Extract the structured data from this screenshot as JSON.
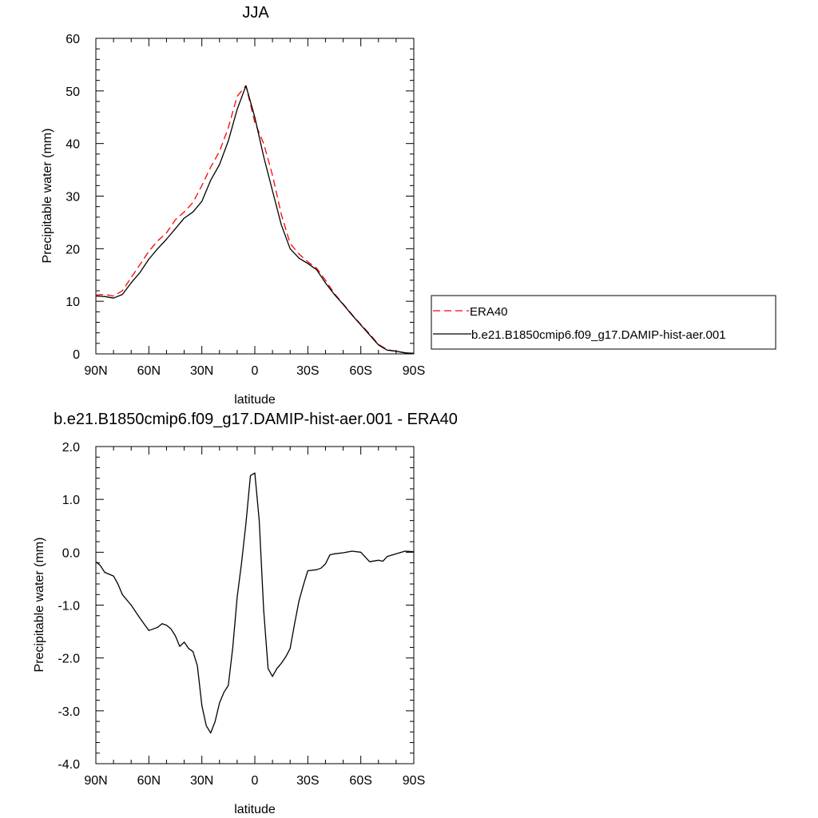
{
  "chart_data": [
    {
      "type": "line",
      "title": "JJA",
      "xlabel": "latitude",
      "ylabel": "Precipitable water (mm)",
      "xlim": [
        90,
        -90
      ],
      "ylim": [
        0,
        60
      ],
      "x_ticks": [
        90,
        60,
        30,
        0,
        -30,
        -60,
        -90
      ],
      "x_tick_labels": [
        "90N",
        "60N",
        "30N",
        "0",
        "30S",
        "60S",
        "90S"
      ],
      "y_ticks": [
        0,
        10,
        20,
        30,
        40,
        50,
        60
      ],
      "y_tick_labels": [
        "0",
        "10",
        "20",
        "30",
        "40",
        "50",
        "60"
      ],
      "grid": false,
      "legend_position": "right",
      "series": [
        {
          "name": "ERA40",
          "color": "#ff0000",
          "dash": "dashed",
          "x": [
            90,
            85,
            80,
            75,
            70,
            65,
            60,
            55,
            50,
            45,
            40,
            35,
            30,
            25,
            20,
            15,
            10,
            5,
            0,
            -5,
            -10,
            -15,
            -20,
            -25,
            -30,
            -35,
            -40,
            -45,
            -50,
            -55,
            -60,
            -65,
            -70,
            -75,
            -80,
            -85,
            -90
          ],
          "y": [
            11.2,
            11.3,
            11.0,
            12.0,
            14.5,
            17.0,
            19.5,
            21.5,
            23.0,
            25.5,
            27.0,
            28.8,
            32.0,
            35.5,
            38.5,
            43.0,
            49.0,
            51.0,
            44.0,
            40.0,
            34.0,
            26.5,
            21.0,
            19.0,
            17.5,
            16.3,
            14.0,
            11.5,
            9.5,
            7.5,
            5.6,
            3.8,
            1.8,
            0.8,
            0.5,
            0.2,
            0.1
          ]
        },
        {
          "name": "b.e21.B1850cmip6.f09_g17.DAMIP-hist-aer.001",
          "color": "#000000",
          "dash": "solid",
          "x": [
            90,
            85,
            80,
            75,
            70,
            65,
            60,
            55,
            50,
            45,
            40,
            35,
            30,
            25,
            20,
            15,
            10,
            5,
            0,
            -5,
            -10,
            -15,
            -20,
            -25,
            -30,
            -35,
            -40,
            -45,
            -50,
            -55,
            -60,
            -65,
            -70,
            -75,
            -80,
            -85,
            -90
          ],
          "y": [
            11.0,
            10.9,
            10.6,
            11.3,
            13.5,
            15.5,
            18.0,
            20.0,
            21.8,
            23.8,
            25.8,
            27.0,
            29.0,
            33.0,
            36.0,
            40.5,
            46.5,
            51.0,
            45.0,
            37.5,
            31.0,
            24.5,
            20.0,
            18.2,
            17.2,
            16.0,
            13.5,
            11.3,
            9.4,
            7.4,
            5.5,
            3.6,
            1.7,
            0.7,
            0.5,
            0.2,
            0.1
          ]
        }
      ]
    },
    {
      "type": "line",
      "title": "b.e21.B1850cmip6.f09_g17.DAMIP-hist-aer.001 - ERA40",
      "xlabel": "latitude",
      "ylabel": "Precipitable water (mm)",
      "xlim": [
        90,
        -90
      ],
      "ylim": [
        -4.0,
        2.0
      ],
      "x_ticks": [
        90,
        60,
        30,
        0,
        -30,
        -60,
        -90
      ],
      "x_tick_labels": [
        "90N",
        "60N",
        "30N",
        "0",
        "30S",
        "60S",
        "90S"
      ],
      "y_ticks": [
        -4.0,
        -3.0,
        -2.0,
        -1.0,
        0.0,
        1.0,
        2.0
      ],
      "y_tick_labels": [
        "-4.0",
        "-3.0",
        "-2.0",
        "-1.0",
        "0.0",
        "1.0",
        "2.0"
      ],
      "grid": false,
      "series": [
        {
          "color": "#000000",
          "dash": "solid",
          "x": [
            90,
            87.5,
            85,
            80,
            77.5,
            75,
            70,
            65,
            60,
            55,
            52.5,
            50,
            47.5,
            45,
            42.5,
            40,
            37.5,
            35,
            32.5,
            30,
            27.5,
            25,
            22.5,
            20,
            17.5,
            15,
            12.5,
            10,
            7.5,
            5,
            2.5,
            0,
            -2.5,
            -5,
            -7.5,
            -10,
            -12.5,
            -15,
            -17.5,
            -20,
            -22.5,
            -25,
            -27.5,
            -30,
            -35,
            -37.5,
            -40,
            -42.5,
            -45,
            -50,
            -55,
            -60,
            -65,
            -70,
            -72.5,
            -75,
            -80,
            -85,
            -90
          ],
          "y": [
            -0.18,
            -0.25,
            -0.38,
            -0.45,
            -0.6,
            -0.8,
            -1.0,
            -1.25,
            -1.48,
            -1.42,
            -1.35,
            -1.38,
            -1.45,
            -1.58,
            -1.78,
            -1.7,
            -1.82,
            -1.88,
            -2.15,
            -2.9,
            -3.28,
            -3.42,
            -3.2,
            -2.85,
            -2.65,
            -2.52,
            -1.8,
            -0.85,
            -0.2,
            0.55,
            1.45,
            1.5,
            0.6,
            -1.1,
            -2.2,
            -2.35,
            -2.2,
            -2.1,
            -1.98,
            -1.82,
            -1.35,
            -0.92,
            -0.62,
            -0.35,
            -0.33,
            -0.3,
            -0.22,
            -0.05,
            -0.03,
            -0.01,
            0.02,
            0.0,
            -0.18,
            -0.15,
            -0.17,
            -0.08,
            -0.03,
            0.02,
            0.01
          ]
        }
      ]
    }
  ]
}
